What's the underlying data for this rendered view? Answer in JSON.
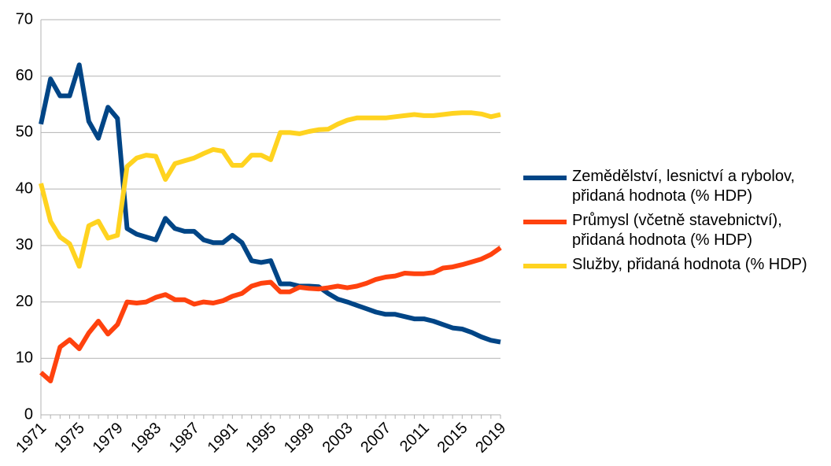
{
  "chart_data": {
    "type": "line",
    "categories": [
      "1971",
      null,
      null,
      null,
      "1975",
      null,
      null,
      null,
      "1979",
      null,
      null,
      null,
      "1983",
      null,
      null,
      null,
      "1987",
      null,
      null,
      null,
      "1991",
      null,
      null,
      null,
      "1995",
      null,
      null,
      null,
      "1999",
      null,
      null,
      null,
      "2003",
      null,
      null,
      null,
      "2007",
      null,
      null,
      null,
      "2011",
      null,
      null,
      null,
      "2015",
      null,
      null,
      null,
      "2019"
    ],
    "series": [
      {
        "name": "Zemědělství, lesnictví a rybolov, přidaná hodnota (% HDP)",
        "color": "#004586",
        "values": [
          51.5,
          59.5,
          56.5,
          56.5,
          62,
          52,
          49,
          54.5,
          52.5,
          33,
          32,
          31.5,
          31,
          34.8,
          33,
          32.5,
          32.5,
          31,
          30.5,
          30.5,
          31.8,
          30.5,
          27.3,
          27,
          27.3,
          23.2,
          23.2,
          22.8,
          22.8,
          22.7,
          21.5,
          20.5,
          20,
          19.4,
          18.8,
          18.2,
          17.8,
          17.8,
          17.4,
          17,
          17,
          16.6,
          16,
          15.4,
          15.2,
          14.6,
          13.8,
          13.2,
          12.9
        ]
      },
      {
        "name": "Průmysl (včetně stavebnictví), přidaná hodnota (% HDP)",
        "color": "#ff420e",
        "values": [
          7.5,
          6,
          12,
          13.3,
          11.7,
          14.5,
          16.6,
          14.3,
          16,
          20,
          19.8,
          20,
          20.8,
          21.3,
          20.4,
          20.4,
          19.6,
          20,
          19.8,
          20.2,
          21,
          21.5,
          22.8,
          23.3,
          23.5,
          21.8,
          21.8,
          22.6,
          22.4,
          22.3,
          22.5,
          22.8,
          22.5,
          22.8,
          23.3,
          24,
          24.4,
          24.6,
          25.1,
          25,
          25,
          25.2,
          26,
          26.2,
          26.6,
          27.1,
          27.6,
          28.4,
          29.6
        ]
      },
      {
        "name": "Služby, přidaná hodnota (% HDP)",
        "color": "#ffd320",
        "values": [
          41,
          34.3,
          31.5,
          30.3,
          26.3,
          33.5,
          34.3,
          31.3,
          31.8,
          44,
          45.5,
          46,
          45.8,
          41.7,
          44.5,
          45,
          45.5,
          46.3,
          47,
          46.7,
          44.2,
          44.2,
          46,
          46,
          45.2,
          50,
          50,
          49.8,
          50.2,
          50.5,
          50.6,
          51.5,
          52.2,
          52.6,
          52.6,
          52.6,
          52.6,
          52.8,
          53,
          53.2,
          53,
          53,
          53.2,
          53.4,
          53.5,
          53.5,
          53.3,
          52.8,
          53.2
        ]
      }
    ],
    "ylim": [
      0,
      70
    ],
    "yticks": [
      0,
      10,
      20,
      30,
      40,
      50,
      60,
      70
    ],
    "grid": true,
    "legend": "right"
  }
}
